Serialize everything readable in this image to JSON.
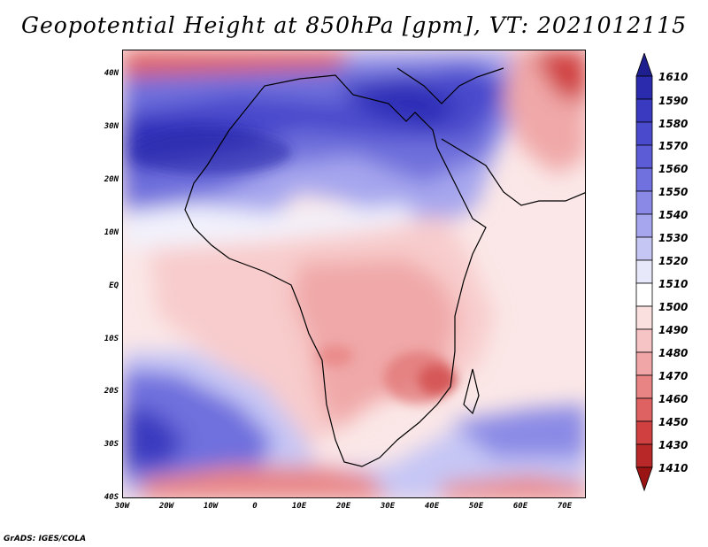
{
  "title": "Geopotential Height at 850hPa [gpm], VT: 2021012115",
  "credit": "GrADS: IGES/COLA",
  "map": {
    "lon_range": [
      -30,
      75
    ],
    "lat_range": [
      -40,
      45
    ],
    "lat_labels": [
      "40N",
      "30N",
      "20N",
      "10N",
      "EQ",
      "10S",
      "20S",
      "30S",
      "40S"
    ],
    "lon_labels": [
      "30W",
      "20W",
      "10W",
      "0",
      "10E",
      "20E",
      "30E",
      "40E",
      "50E",
      "60E",
      "70E"
    ]
  },
  "colorbar": {
    "levels": [
      "1610",
      "1590",
      "1580",
      "1570",
      "1560",
      "1550",
      "1540",
      "1530",
      "1520",
      "1510",
      "1500",
      "1490",
      "1480",
      "1470",
      "1460",
      "1450",
      "1430",
      "1410"
    ],
    "colors": [
      "#1e1e8f",
      "#2b2bad",
      "#3a3ac0",
      "#4a4acc",
      "#5c5cd6",
      "#7070de",
      "#8a8ae6",
      "#a6a6ee",
      "#c6c6f5",
      "#e8e8fb",
      "#ffffff",
      "#fbe0e0",
      "#f6c4c4",
      "#f0a6a6",
      "#e88484",
      "#de6262",
      "#d04040",
      "#b82828",
      "#9a1414"
    ]
  }
}
